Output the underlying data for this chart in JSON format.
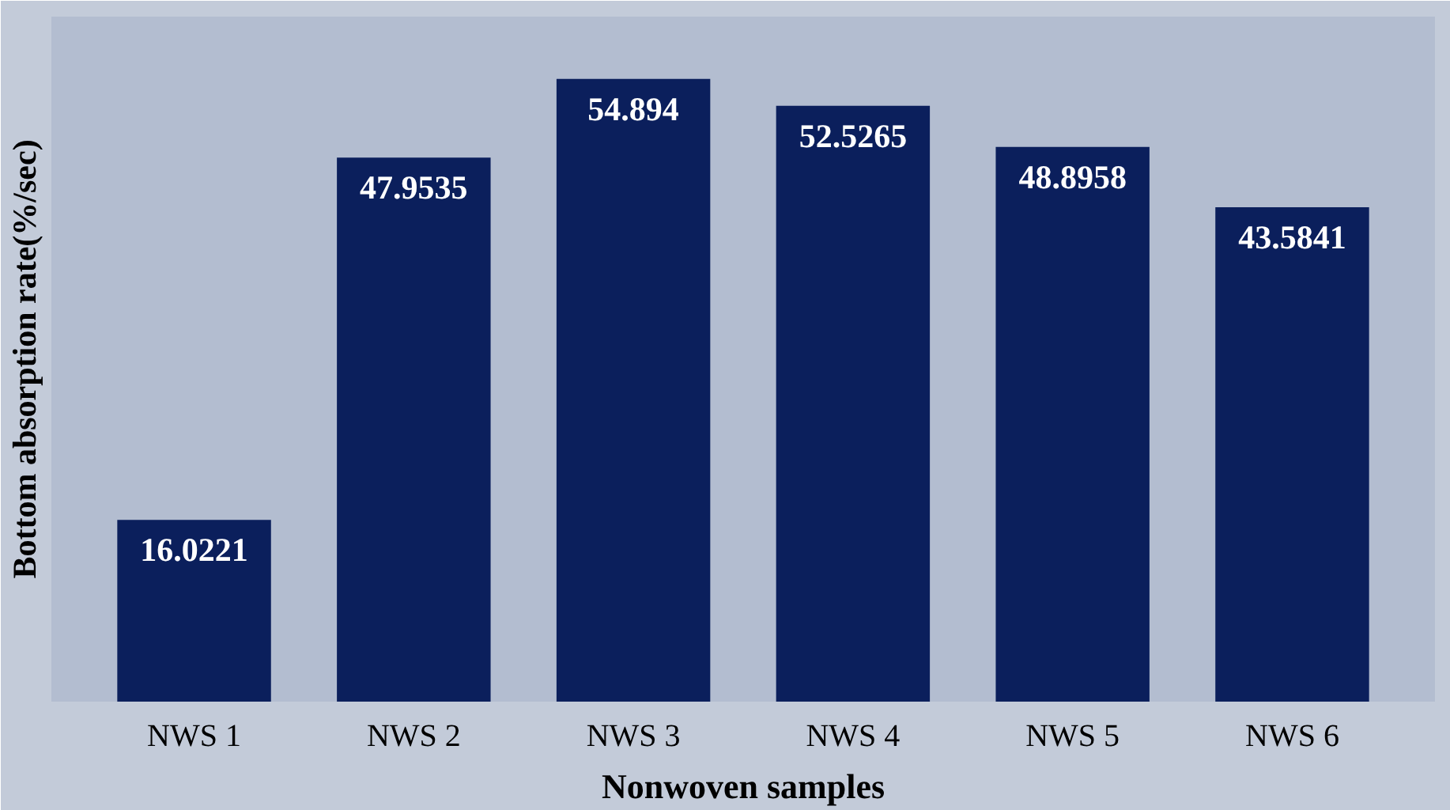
{
  "chart_data": {
    "type": "bar",
    "xlabel": "Nonwoven samples",
    "ylabel": "Bottom absorption rate(%/sec)",
    "categories": [
      "NWS 1",
      "NWS 2",
      "NWS 3",
      "NWS 4",
      "NWS 5",
      "NWS 6"
    ],
    "values": [
      16.0221,
      47.9535,
      54.894,
      52.5265,
      48.8958,
      43.5841
    ],
    "color": "#0b1f5c",
    "data_labels": true
  }
}
